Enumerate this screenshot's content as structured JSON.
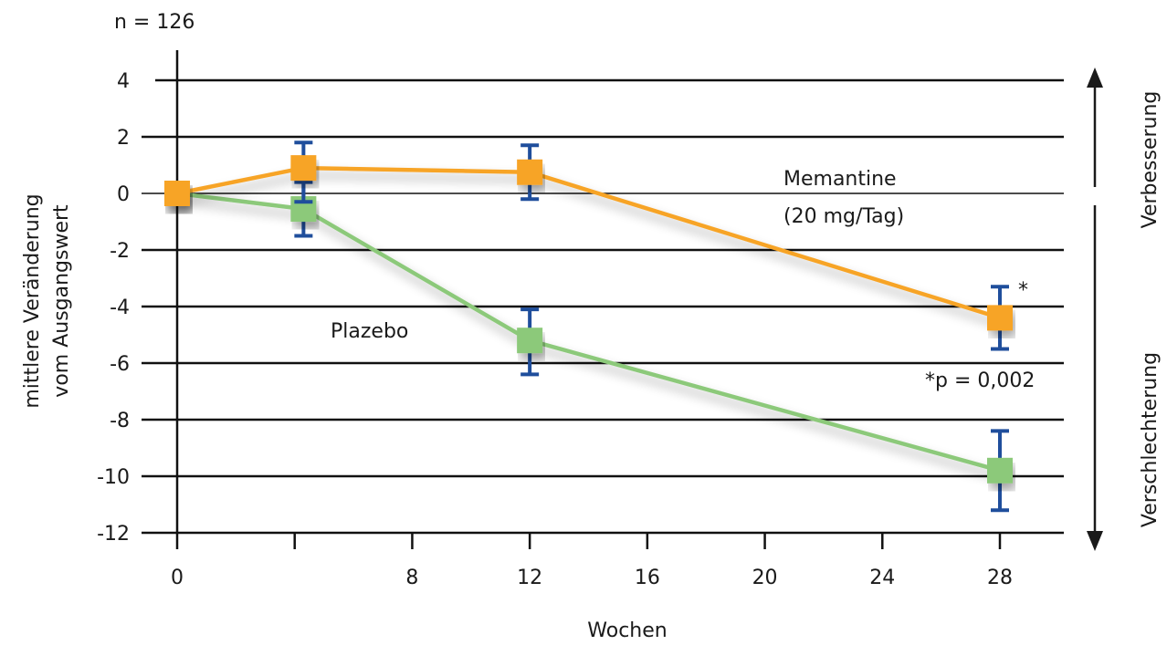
{
  "chart_data": {
    "type": "line",
    "note_n": "n = 126",
    "xlabel": "Wochen",
    "ylabel_line1": "mittlere Veränderung",
    "ylabel_line2": "vom Ausgangswert",
    "right_label_up": "Verbesserung",
    "right_label_down": "Verschlechterung",
    "xlim": [
      0,
      30
    ],
    "ylim": [
      -12,
      4
    ],
    "x_ticks": [
      0,
      4,
      8,
      12,
      16,
      20,
      24,
      28
    ],
    "x_tick_labels": [
      "0",
      "",
      "8",
      "12",
      "16",
      "20",
      "24",
      "28"
    ],
    "y_ticks": [
      -12,
      -10,
      -8,
      -6,
      -4,
      -2,
      0,
      2,
      4
    ],
    "y_tick_labels": [
      "-12",
      "-10",
      "-8",
      "-6",
      "-4",
      "-2",
      "0",
      "2",
      "4"
    ],
    "grid": true,
    "series": [
      {
        "name": "Memantine",
        "label_line1": "Memantine",
        "label_line2": "(20 mg/Tag)",
        "color": "#f7a428",
        "x": [
          0,
          4.3,
          12,
          28
        ],
        "y": [
          0.0,
          0.9,
          0.75,
          -4.4
        ],
        "err_low": [
          null,
          -0.3,
          -0.2,
          -5.5
        ],
        "err_high": [
          null,
          1.8,
          1.7,
          -3.3
        ]
      },
      {
        "name": "Plazebo",
        "label_line1": "Plazebo",
        "color": "#8cc97a",
        "x": [
          0,
          4.3,
          12,
          28
        ],
        "y": [
          0.0,
          -0.55,
          -5.2,
          -9.8
        ],
        "err_low": [
          null,
          -1.5,
          -6.4,
          -11.2
        ],
        "err_high": [
          null,
          0.4,
          -4.1,
          -8.4
        ]
      }
    ],
    "annotation_star": "*",
    "annotation_p": "*p = 0,002",
    "error_bar_color": "#1f4e9c",
    "axis_color": "#111111"
  }
}
